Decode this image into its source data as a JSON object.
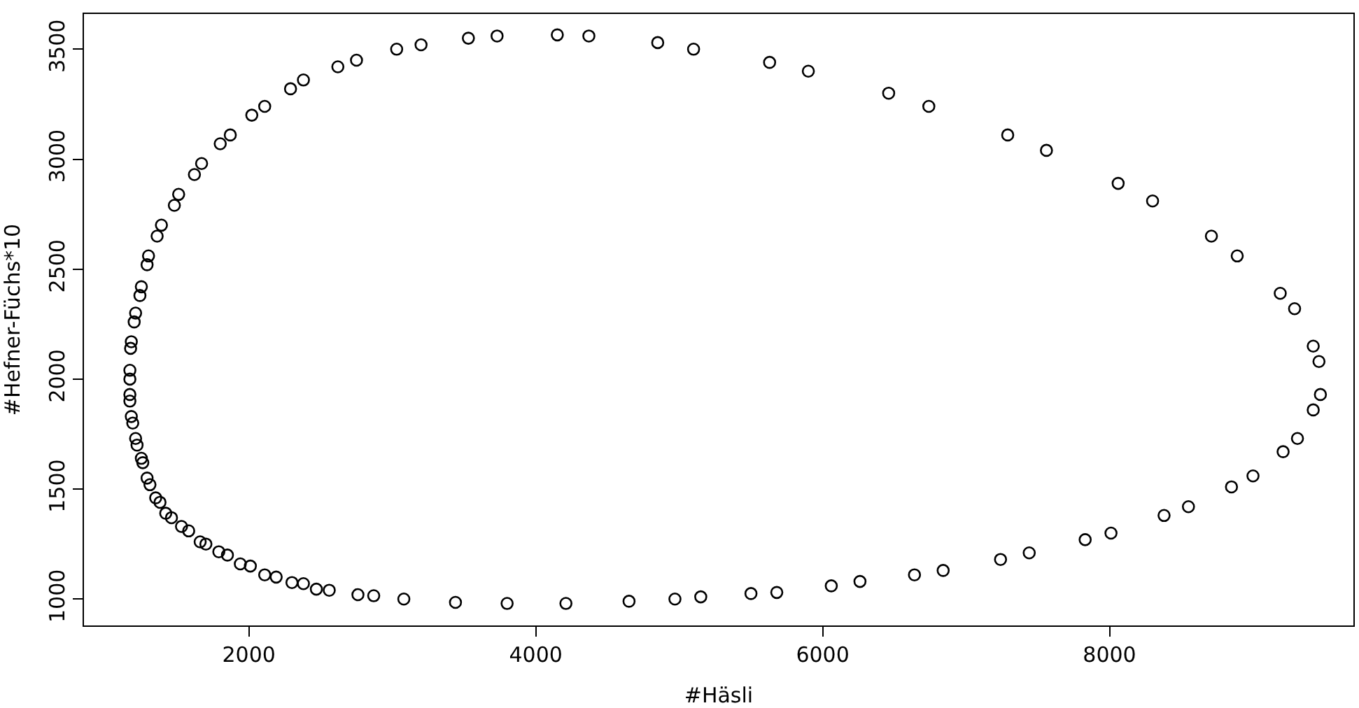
{
  "chart_data": {
    "type": "scatter",
    "xlabel": "#Häsli",
    "ylabel": "#Hefner-Füchs*10",
    "marker": "circle",
    "grid": false,
    "xlim": [
      850,
      9700
    ],
    "ylim": [
      880,
      3660
    ],
    "xticks": [
      2000,
      4000,
      6000,
      8000
    ],
    "yticks": [
      1000,
      1500,
      2000,
      2500,
      3000,
      3500
    ],
    "series": [
      {
        "color": "#000000",
        "x": [
          1170,
          1170,
          1175,
          1180,
          1200,
          1210,
          1240,
          1250,
          1290,
          1300,
          1360,
          1390,
          1480,
          1510,
          1620,
          1670,
          1800,
          1870,
          2020,
          2110,
          2290,
          2380,
          2620,
          2750,
          3030,
          3200,
          3530,
          3730,
          4150,
          4370,
          4850,
          5100,
          5630,
          5900,
          6460,
          6740,
          7290,
          7560,
          8060,
          8300,
          8710,
          8890,
          9190,
          9290,
          9420,
          9460,
          9470,
          9420,
          9310,
          9210,
          9000,
          8850,
          8550,
          8380,
          8010,
          7830,
          7440,
          7240,
          6840,
          6640,
          6260,
          6060,
          5680,
          5500,
          5150,
          4970,
          4650,
          4210,
          3800,
          3440,
          3080,
          2870,
          2760,
          2560,
          2470,
          2380,
          2300,
          2190,
          2110,
          2010,
          1940,
          1850,
          1790,
          1700,
          1660,
          1580,
          1530,
          1460,
          1420,
          1380,
          1350,
          1310,
          1290,
          1260,
          1250,
          1220,
          1210,
          1190,
          1180,
          1170,
          1170
        ],
        "values": [
          2000,
          2040,
          2140,
          2170,
          2260,
          2300,
          2380,
          2420,
          2520,
          2560,
          2650,
          2700,
          2790,
          2840,
          2930,
          2980,
          3070,
          3110,
          3200,
          3240,
          3320,
          3360,
          3420,
          3450,
          3500,
          3520,
          3550,
          3560,
          3565,
          3560,
          3530,
          3500,
          3440,
          3400,
          3300,
          3240,
          3110,
          3040,
          2890,
          2810,
          2650,
          2560,
          2390,
          2320,
          2150,
          2080,
          1930,
          1860,
          1730,
          1670,
          1560,
          1510,
          1420,
          1380,
          1300,
          1270,
          1210,
          1180,
          1130,
          1110,
          1080,
          1060,
          1030,
          1025,
          1010,
          1000,
          990,
          980,
          980,
          985,
          1000,
          1015,
          1020,
          1040,
          1045,
          1070,
          1075,
          1100,
          1110,
          1150,
          1160,
          1200,
          1215,
          1250,
          1260,
          1310,
          1330,
          1370,
          1390,
          1440,
          1460,
          1520,
          1550,
          1620,
          1640,
          1700,
          1730,
          1800,
          1830,
          1900,
          1930
        ]
      }
    ]
  }
}
